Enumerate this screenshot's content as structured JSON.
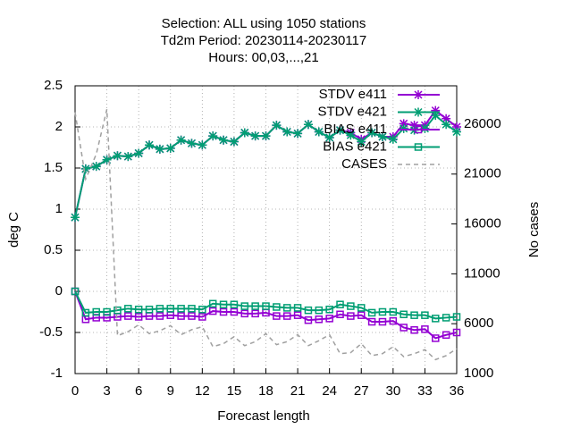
{
  "chart_data": {
    "type": "line",
    "title": [
      "Selection: ALL using  1050 stations",
      "Td2m   Period: 20230114-20230117",
      "Hours:  00,03,...,21"
    ],
    "xlabel": "Forecast length",
    "ylabel": "deg C",
    "y2label": "No cases",
    "x": [
      0,
      1,
      2,
      3,
      4,
      5,
      6,
      7,
      8,
      9,
      10,
      11,
      12,
      13,
      14,
      15,
      16,
      17,
      18,
      19,
      20,
      21,
      22,
      23,
      24,
      25,
      26,
      27,
      28,
      29,
      30,
      31,
      32,
      33,
      34,
      35,
      36
    ],
    "xlim": [
      0,
      36
    ],
    "xticks": [
      0,
      3,
      6,
      9,
      12,
      15,
      18,
      21,
      24,
      27,
      30,
      33,
      36
    ],
    "ylim": [
      -1,
      2.5
    ],
    "yticks": [
      -1,
      -0.5,
      0,
      0.5,
      1,
      1.5,
      2,
      2.5
    ],
    "y2lim": [
      1000,
      29850
    ],
    "y2ticks": [
      1000,
      6000,
      11000,
      16000,
      21000,
      26000
    ],
    "grid": true,
    "legend": "top-right",
    "series": [
      {
        "name": "STDV e411",
        "color": "#9400d3",
        "marker": "star",
        "values": [
          0.9,
          1.49,
          1.52,
          1.6,
          1.65,
          1.64,
          1.68,
          1.78,
          1.73,
          1.74,
          1.84,
          1.8,
          1.78,
          1.89,
          1.84,
          1.82,
          1.93,
          1.89,
          1.89,
          2.02,
          1.94,
          1.92,
          2.03,
          1.94,
          1.87,
          1.96,
          1.93,
          1.85,
          1.93,
          1.88,
          1.88,
          2.04,
          2.02,
          2.02,
          2.2,
          2.1,
          2.0
        ]
      },
      {
        "name": "STDV e421",
        "color": "#009e73",
        "marker": "star",
        "values": [
          0.9,
          1.49,
          1.52,
          1.6,
          1.65,
          1.64,
          1.68,
          1.78,
          1.73,
          1.74,
          1.84,
          1.8,
          1.78,
          1.89,
          1.84,
          1.82,
          1.93,
          1.89,
          1.89,
          2.02,
          1.94,
          1.92,
          2.03,
          1.94,
          1.87,
          1.96,
          1.9,
          1.82,
          1.93,
          1.88,
          1.85,
          1.98,
          1.96,
          1.98,
          2.14,
          2.03,
          1.94
        ]
      },
      {
        "name": "BIAS e411",
        "color": "#9400d3",
        "marker": "square",
        "values": [
          0,
          -0.34,
          -0.32,
          -0.32,
          -0.31,
          -0.3,
          -0.31,
          -0.3,
          -0.3,
          -0.29,
          -0.3,
          -0.3,
          -0.31,
          -0.24,
          -0.25,
          -0.25,
          -0.27,
          -0.27,
          -0.26,
          -0.3,
          -0.3,
          -0.29,
          -0.35,
          -0.34,
          -0.33,
          -0.28,
          -0.3,
          -0.29,
          -0.37,
          -0.37,
          -0.36,
          -0.44,
          -0.47,
          -0.46,
          -0.57,
          -0.53,
          -0.5
        ]
      },
      {
        "name": "BIAS e421",
        "color": "#009e73",
        "marker": "square",
        "values": [
          0,
          -0.26,
          -0.25,
          -0.25,
          -0.23,
          -0.21,
          -0.22,
          -0.22,
          -0.21,
          -0.21,
          -0.21,
          -0.21,
          -0.22,
          -0.15,
          -0.16,
          -0.16,
          -0.18,
          -0.18,
          -0.18,
          -0.19,
          -0.2,
          -0.2,
          -0.23,
          -0.23,
          -0.22,
          -0.16,
          -0.18,
          -0.2,
          -0.26,
          -0.25,
          -0.25,
          -0.28,
          -0.29,
          -0.29,
          -0.33,
          -0.32,
          -0.31
        ]
      },
      {
        "name": "CASES",
        "color": "#a0a0a0",
        "dashed": true,
        "axis": "y2",
        "values": [
          27200,
          20500,
          23000,
          27500,
          4800,
          5200,
          5900,
          5000,
          5300,
          5800,
          4900,
          5400,
          5700,
          3700,
          4000,
          4700,
          3800,
          4200,
          5000,
          3900,
          4200,
          4900,
          3800,
          4300,
          4900,
          3000,
          3100,
          4000,
          2800,
          3000,
          3700,
          2700,
          3000,
          3400,
          2400,
          2800,
          3500
        ]
      }
    ]
  }
}
